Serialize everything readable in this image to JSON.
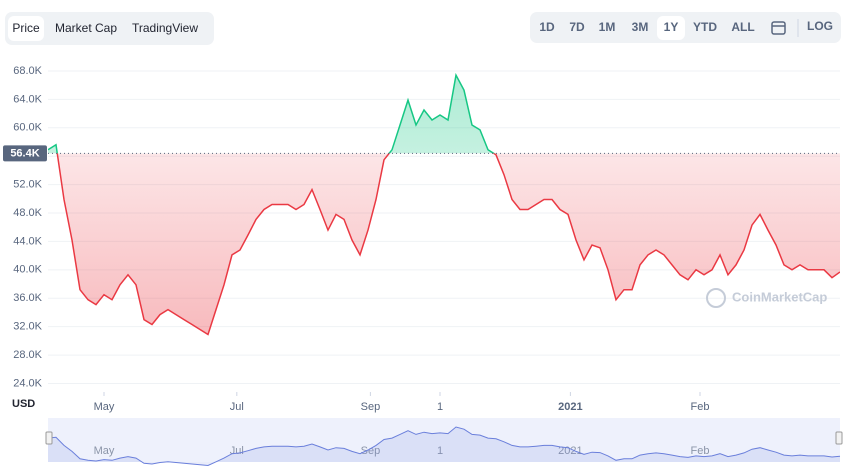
{
  "controls": {
    "tabs": [
      "Price",
      "Market Cap",
      "TradingView"
    ],
    "selected_tab": 0,
    "ranges": [
      "1D",
      "7D",
      "1M",
      "3M",
      "1Y",
      "YTD",
      "ALL"
    ],
    "selected_range": 4,
    "log": "LOG"
  },
  "chart_data": {
    "type": "line",
    "currency": "USD",
    "watermark": "CoinMarketCap",
    "values": [
      56900,
      57600,
      49900,
      44200,
      37200,
      35800,
      35100,
      36500,
      35800,
      37900,
      39300,
      37900,
      33000,
      32300,
      33700,
      34400,
      33700,
      33000,
      32300,
      31600,
      30900,
      34400,
      37900,
      42100,
      42800,
      44900,
      47100,
      48500,
      49200,
      49200,
      49200,
      48500,
      49200,
      51300,
      48500,
      45600,
      47800,
      47100,
      44200,
      42100,
      45600,
      49900,
      55500,
      56900,
      60400,
      63900,
      60400,
      62500,
      61100,
      61800,
      61100,
      67400,
      65300,
      60400,
      59700,
      56900,
      56200,
      53400,
      49900,
      48500,
      48500,
      49200,
      49900,
      49900,
      48500,
      47800,
      44200,
      41400,
      43500,
      43100,
      40000,
      35800,
      37200,
      37200,
      40700,
      42100,
      42800,
      42100,
      40700,
      39300,
      38600,
      40000,
      39300,
      40000,
      42100,
      39300,
      40700,
      42800,
      46300,
      47800,
      45600,
      43500,
      40700,
      40000,
      40700,
      40000,
      40000,
      40000,
      38900,
      39700
    ],
    "baseline": {
      "value": 56400,
      "label": "56.4K"
    },
    "up_color": "#16c784",
    "down_color": "#ea3943",
    "navigator_color": "#6a7fdb",
    "ylim": [
      22800,
      70250
    ],
    "yticks": [
      {
        "value": 24000,
        "label": "24.0K"
      },
      {
        "value": 28000,
        "label": "28.0K"
      },
      {
        "value": 32000,
        "label": "32.0K"
      },
      {
        "value": 36000,
        "label": "36.0K"
      },
      {
        "value": 40000,
        "label": "40.0K"
      },
      {
        "value": 44000,
        "label": "44.0K"
      },
      {
        "value": 48000,
        "label": "48.0K"
      },
      {
        "value": 52000,
        "label": "52.0K"
      },
      {
        "value": 56000,
        "label": "56.0K"
      },
      {
        "value": 60000,
        "label": "60.0K"
      },
      {
        "value": 64000,
        "label": "64.0K"
      },
      {
        "value": 68000,
        "label": "68.0K"
      }
    ],
    "xlim": [
      0,
      99
    ],
    "xticks": [
      {
        "value": 7,
        "label": "May"
      },
      {
        "value": 23.6,
        "label": "Jul"
      },
      {
        "value": 40.3,
        "label": "Sep"
      },
      {
        "value": 49,
        "label": "1"
      },
      {
        "value": 65.3,
        "label": "2021"
      },
      {
        "value": 81.5,
        "label": "Feb"
      }
    ],
    "grid": true
  }
}
